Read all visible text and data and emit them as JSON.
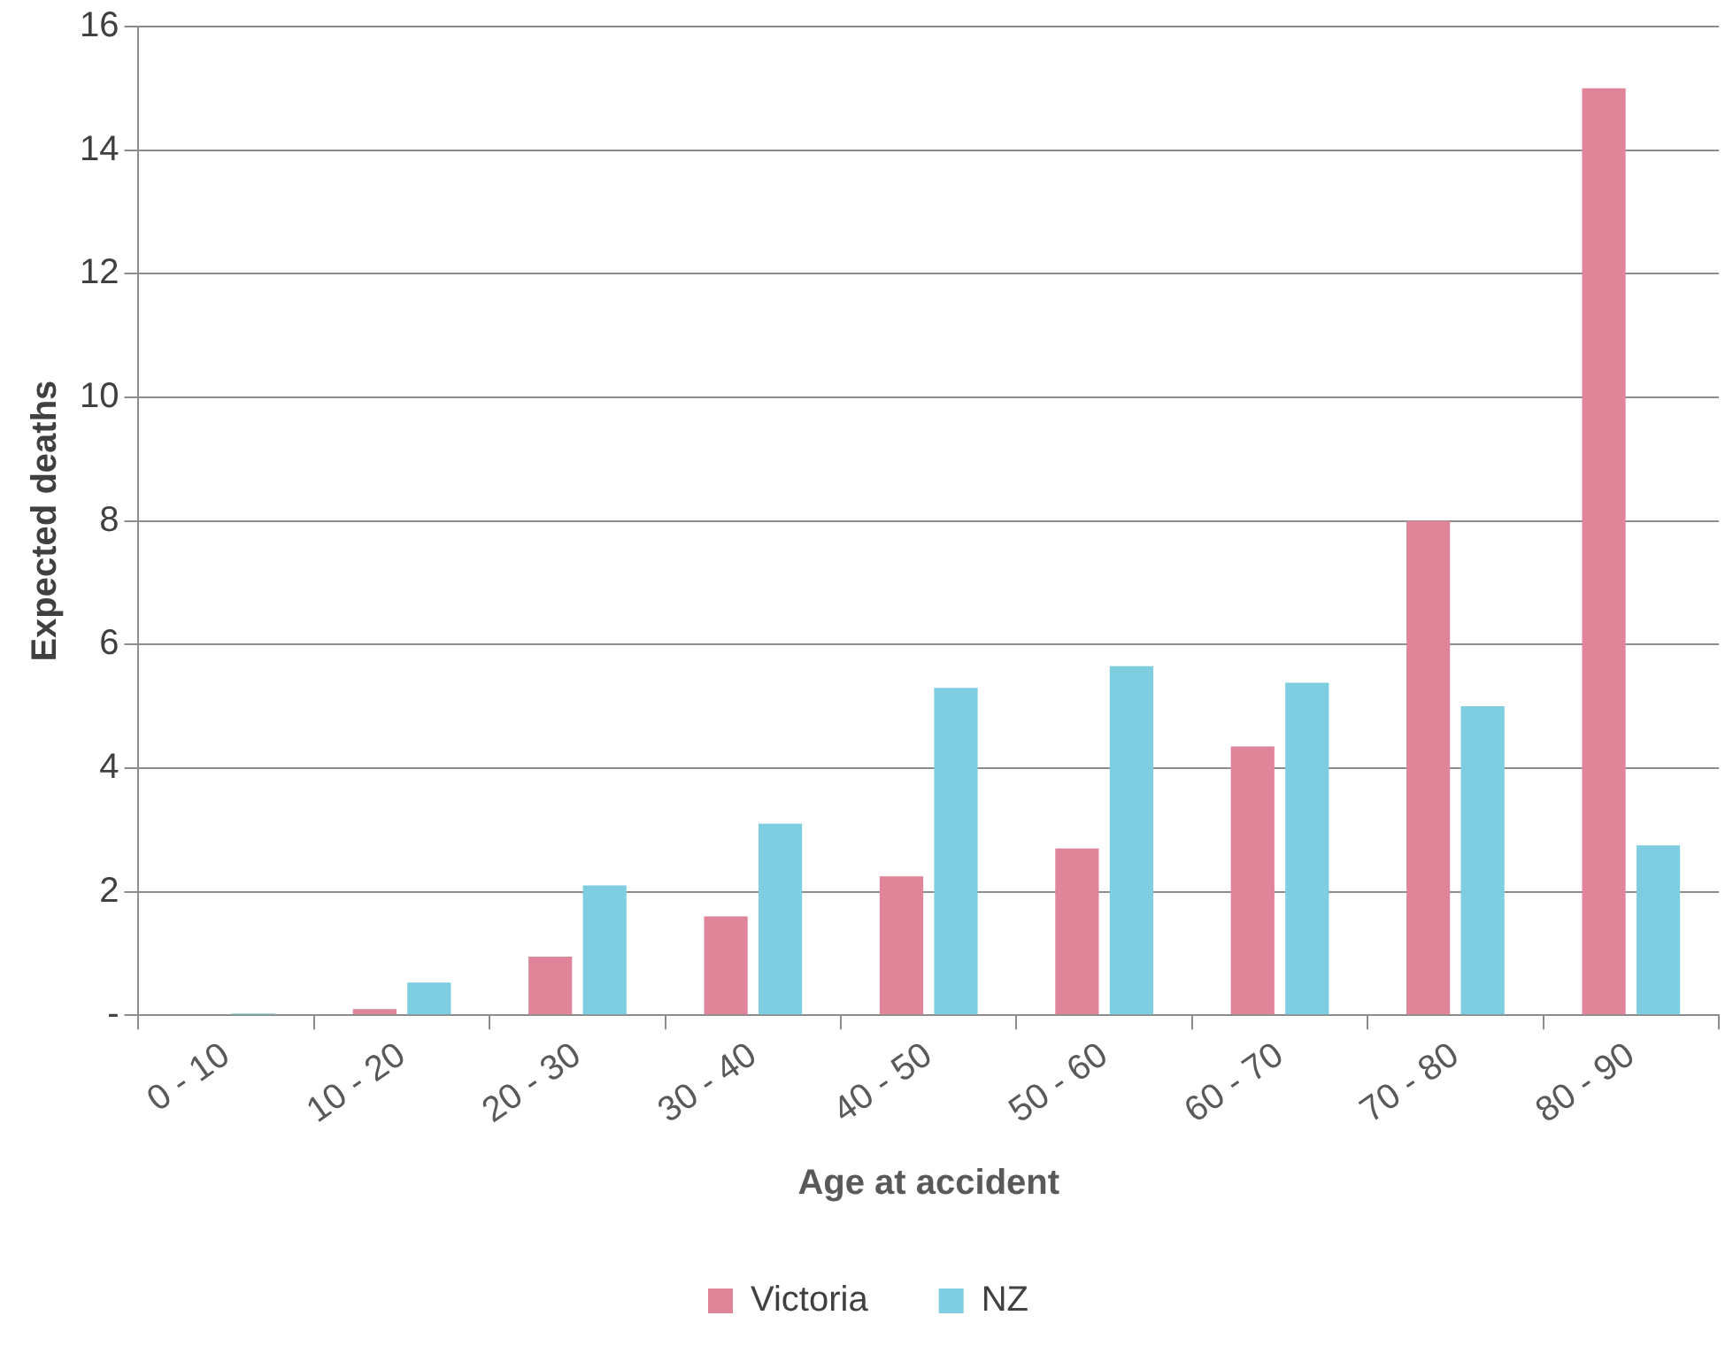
{
  "chart_data": {
    "type": "bar",
    "xlabel": "Age at accident",
    "ylabel": "Expected deaths",
    "categories": [
      "0 - 10",
      "10 - 20",
      "20 - 30",
      "30 - 40",
      "40 - 50",
      "50 - 60",
      "60 - 70",
      "70 - 80",
      "80 - 90"
    ],
    "series": [
      {
        "name": "Victoria",
        "color": "#e0849a",
        "values": [
          0,
          0.1,
          0.95,
          1.6,
          2.25,
          2.7,
          4.35,
          8,
          15
        ]
      },
      {
        "name": "NZ",
        "color": "#7ecde0",
        "values": [
          0.03,
          0.53,
          2.1,
          3.1,
          5.3,
          5.65,
          5.38,
          5.0,
          2.75
        ]
      }
    ],
    "ylim": [
      0,
      16
    ],
    "yticks": [
      {
        "value": 0,
        "label": "-"
      },
      2,
      4,
      6,
      8,
      10,
      12,
      14,
      16
    ],
    "grid": "y",
    "legend": "bottom"
  }
}
